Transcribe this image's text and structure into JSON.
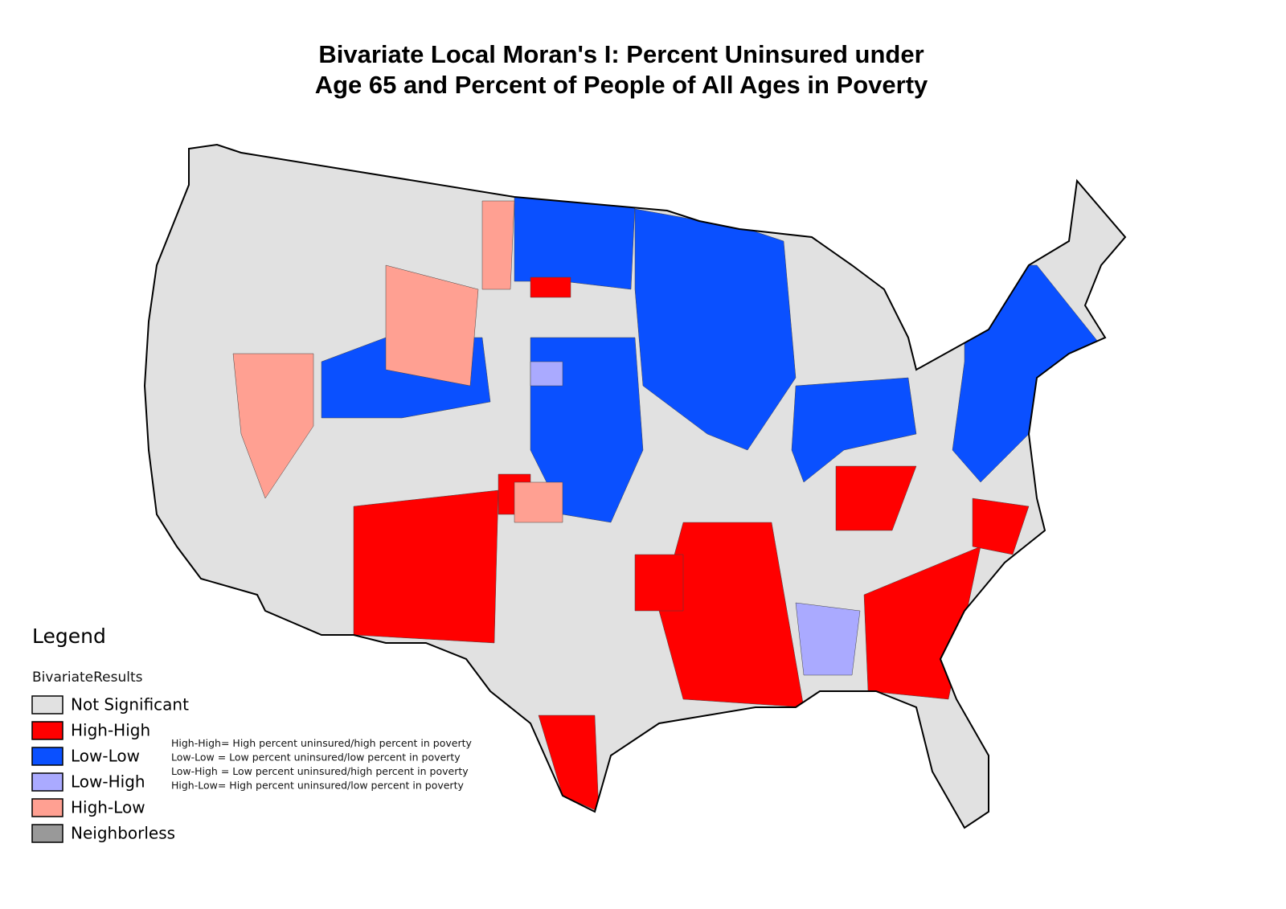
{
  "title": [
    "Bivariate Local Moran's I: Percent Uninsured under",
    "Age 65 and Percent of People of All Ages in Poverty"
  ],
  "legend": {
    "heading": "Legend",
    "subtitle": "BivariateResults",
    "items": [
      {
        "label": "Not Significant",
        "color": "#e1e1e1"
      },
      {
        "label": "High-High",
        "color": "#ff0000"
      },
      {
        "label": "Low-Low",
        "color": "#0a50ff"
      },
      {
        "label": "Low-High",
        "color": "#aaaaff"
      },
      {
        "label": "High-Low",
        "color": "#ffa092"
      },
      {
        "label": "Neighborless",
        "color": "#999999"
      }
    ]
  },
  "notes": [
    "High-High= High percent uninsured/high percent in poverty",
    "Low-Low = Low percent uninsured/low percent in poverty",
    "Low-High = Low percent uninsured/high percent in poverty",
    "High-Low= High percent uninsured/low percent in poverty"
  ]
}
